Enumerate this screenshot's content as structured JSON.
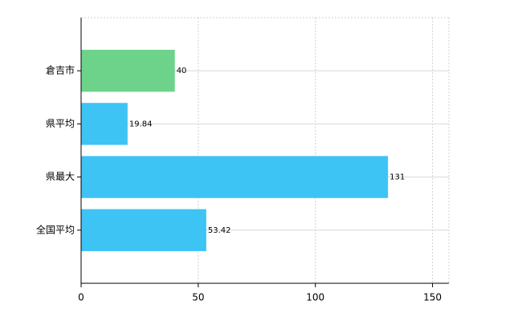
{
  "chart_data": {
    "type": "bar",
    "orientation": "horizontal",
    "categories": [
      "倉吉市",
      "県平均",
      "県最大",
      "全国平均"
    ],
    "values": [
      40,
      19.84,
      131,
      53.42
    ],
    "colors": [
      "#6dd38b",
      "#3ec3f5",
      "#3ec3f5",
      "#3ec3f5"
    ],
    "xlim": [
      0,
      157
    ],
    "xticks": [
      0,
      50,
      100,
      150
    ],
    "grid": true
  }
}
